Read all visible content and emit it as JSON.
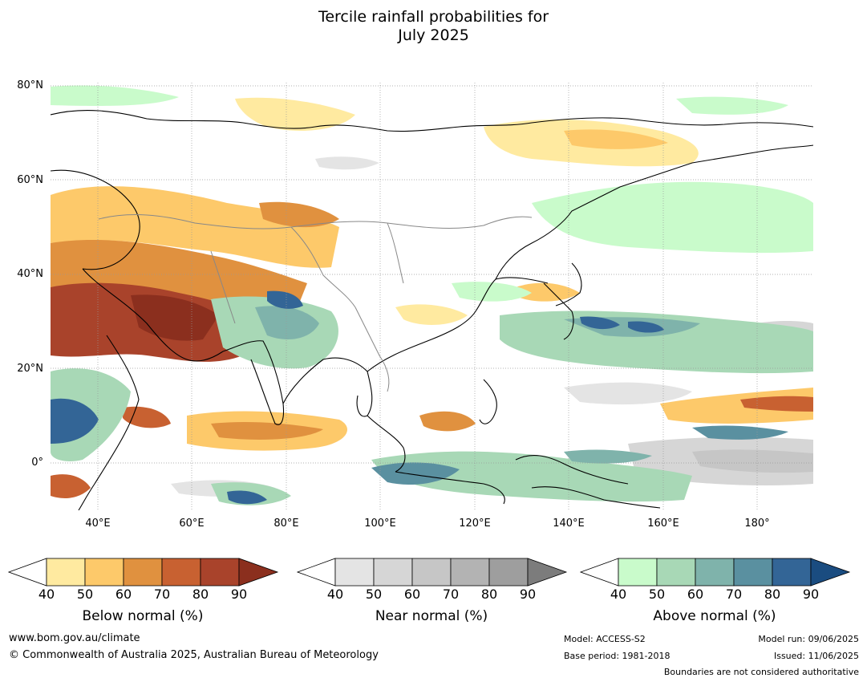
{
  "title_line1": "Tercile rainfall probabilities for",
  "title_line2": "July 2025",
  "lat_labels": [
    "80°N",
    "60°N",
    "40°N",
    "20°N",
    "0°"
  ],
  "lon_labels": [
    "40°E",
    "60°E",
    "80°E",
    "100°E",
    "120°E",
    "140°E",
    "160°E",
    "180°"
  ],
  "legend_ticks": [
    "40",
    "50",
    "60",
    "70",
    "80",
    "90"
  ],
  "colorbars": [
    {
      "title": "Below normal (%)",
      "colors": [
        "#ffffff",
        "#ffeaa0",
        "#fdc96a",
        "#e0913f",
        "#c86131",
        "#a9432b",
        "#8b2f1e"
      ]
    },
    {
      "title": "Near normal (%)",
      "colors": [
        "#ffffff",
        "#e4e4e4",
        "#d6d6d6",
        "#c6c6c6",
        "#b3b3b3",
        "#9e9e9e",
        "#7c7c7c"
      ]
    },
    {
      "title": "Above normal (%)",
      "colors": [
        "#ffffff",
        "#c9fbcb",
        "#a8d8b6",
        "#7fb3ab",
        "#5a90a0",
        "#336596",
        "#1a4c80"
      ]
    }
  ],
  "footer": {
    "website": "www.bom.gov.au/climate",
    "copyright": "© Commonwealth of Australia 2025, Australian Bureau of Meteorology",
    "model": "Model: ACCESS-S2",
    "base_period": "Base period: 1981-2018",
    "model_run": "Model run: 09/06/2025",
    "issued": "Issued: 11/06/2025",
    "disclaimer": "Boundaries are not considered authoritative"
  }
}
